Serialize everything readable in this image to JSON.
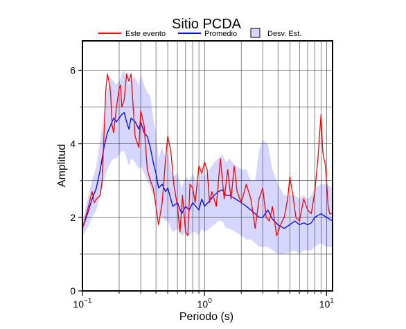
{
  "chart_data": {
    "type": "line",
    "title": "Sitio PCDA",
    "xlabel": "Periodo (s)",
    "ylabel": "Amplitud",
    "x_scale": "log",
    "xlim": [
      0.1,
      11.2
    ],
    "ylim": [
      0,
      6.8
    ],
    "yticks": [
      0,
      2,
      4,
      6
    ],
    "xticks": [
      {
        "value": 0.1,
        "base": "10",
        "exp": "−1"
      },
      {
        "value": 1,
        "base": "10",
        "exp": "0"
      },
      {
        "value": 10,
        "base": "10",
        "exp": "1"
      }
    ],
    "grid": true,
    "legend_placement": "top",
    "legend": {
      "este": "Este evento",
      "prom": "Promedio",
      "desv": "Desv. Est."
    },
    "colors": {
      "este": "#ff0000",
      "prom": "#0000ff",
      "band": "#d6d6ff",
      "grid": "#333333"
    },
    "series": [
      {
        "name": "Este evento",
        "x": [
          0.1,
          0.11,
          0.12,
          0.125,
          0.13,
          0.14,
          0.145,
          0.15,
          0.155,
          0.16,
          0.165,
          0.17,
          0.175,
          0.18,
          0.19,
          0.2,
          0.205,
          0.21,
          0.22,
          0.23,
          0.24,
          0.25,
          0.27,
          0.29,
          0.3,
          0.32,
          0.34,
          0.36,
          0.38,
          0.4,
          0.42,
          0.45,
          0.48,
          0.5,
          0.53,
          0.56,
          0.6,
          0.63,
          0.66,
          0.7,
          0.73,
          0.76,
          0.8,
          0.84,
          0.9,
          0.95,
          1.0,
          1.05,
          1.1,
          1.15,
          1.25,
          1.35,
          1.45,
          1.55,
          1.65,
          1.75,
          1.85,
          2.0,
          2.2,
          2.4,
          2.6,
          2.8,
          3.0,
          3.2,
          3.4,
          3.6,
          3.9,
          4.2,
          4.5,
          4.8,
          5.0,
          5.3,
          5.6,
          6.0,
          6.5,
          7.0,
          7.5,
          8.0,
          8.5,
          9.0,
          9.3,
          9.5,
          9.7,
          10.0,
          10.3,
          10.6,
          11.0,
          11.2
        ],
        "y": [
          1.7,
          2.2,
          2.7,
          2.4,
          2.5,
          2.6,
          3.0,
          4.2,
          5.4,
          5.9,
          5.7,
          5.4,
          4.5,
          4.3,
          5.0,
          5.5,
          5.6,
          5.0,
          5.2,
          5.9,
          5.7,
          5.9,
          4.2,
          3.9,
          4.9,
          4.5,
          3.3,
          3.0,
          2.8,
          2.3,
          1.8,
          2.4,
          3.6,
          4.2,
          3.8,
          2.9,
          2.3,
          1.6,
          2.6,
          1.6,
          1.5,
          2.9,
          2.8,
          2.4,
          3.4,
          3.2,
          3.5,
          3.3,
          2.4,
          2.7,
          2.3,
          3.6,
          2.5,
          3.3,
          2.5,
          3.4,
          2.7,
          2.4,
          2.9,
          2.5,
          1.7,
          2.5,
          2.8,
          2.0,
          1.9,
          2.3,
          1.5,
          1.8,
          2.0,
          2.5,
          3.1,
          2.6,
          2.0,
          1.9,
          2.5,
          2.2,
          2.1,
          2.7,
          3.6,
          4.8,
          3.8,
          3.6,
          3.5,
          3.0,
          2.3,
          2.1,
          2.1,
          2.1
        ]
      },
      {
        "name": "Promedio",
        "x": [
          0.1,
          0.11,
          0.12,
          0.13,
          0.14,
          0.15,
          0.16,
          0.17,
          0.18,
          0.19,
          0.2,
          0.21,
          0.22,
          0.23,
          0.24,
          0.25,
          0.27,
          0.29,
          0.3,
          0.32,
          0.34,
          0.36,
          0.38,
          0.4,
          0.42,
          0.45,
          0.48,
          0.5,
          0.55,
          0.6,
          0.65,
          0.7,
          0.75,
          0.8,
          0.85,
          0.9,
          0.95,
          1.0,
          1.1,
          1.2,
          1.3,
          1.4,
          1.5,
          1.6,
          1.8,
          2.0,
          2.2,
          2.4,
          2.6,
          2.8,
          3.0,
          3.3,
          3.6,
          4.0,
          4.5,
          5.0,
          5.5,
          6.0,
          6.5,
          7.0,
          7.5,
          8.0,
          9.0,
          10.0,
          11.2
        ],
        "y": [
          1.7,
          2.1,
          2.5,
          2.8,
          3.3,
          3.9,
          4.3,
          4.5,
          4.7,
          4.6,
          4.7,
          4.8,
          4.85,
          4.6,
          4.4,
          4.7,
          4.6,
          4.4,
          4.6,
          4.3,
          4.2,
          3.9,
          3.5,
          3.2,
          2.8,
          2.9,
          2.7,
          2.8,
          2.3,
          2.4,
          2.1,
          2.3,
          2.2,
          2.4,
          2.3,
          2.2,
          2.5,
          2.3,
          2.45,
          2.6,
          2.7,
          2.75,
          2.6,
          2.6,
          2.5,
          2.4,
          2.3,
          2.2,
          2.1,
          2.0,
          2.0,
          2.2,
          1.95,
          1.8,
          1.7,
          1.8,
          1.9,
          1.8,
          1.85,
          1.8,
          1.85,
          2.0,
          2.1,
          2.0,
          1.9
        ]
      },
      {
        "name": "Desv. Est.",
        "x": [
          0.1,
          0.11,
          0.12,
          0.13,
          0.14,
          0.15,
          0.16,
          0.17,
          0.18,
          0.19,
          0.2,
          0.21,
          0.22,
          0.23,
          0.24,
          0.25,
          0.27,
          0.29,
          0.3,
          0.32,
          0.34,
          0.36,
          0.38,
          0.4,
          0.42,
          0.45,
          0.48,
          0.5,
          0.55,
          0.6,
          0.65,
          0.7,
          0.75,
          0.8,
          0.85,
          0.9,
          0.95,
          1.0,
          1.1,
          1.2,
          1.3,
          1.4,
          1.5,
          1.6,
          1.8,
          2.0,
          2.2,
          2.4,
          2.6,
          2.8,
          3.0,
          3.3,
          3.6,
          4.0,
          4.5,
          5.0,
          5.5,
          6.0,
          6.5,
          7.0,
          7.5,
          8.0,
          9.0,
          10.0,
          11.2
        ],
        "lower": [
          1.5,
          1.7,
          2.0,
          2.2,
          2.6,
          3.0,
          3.3,
          3.5,
          3.6,
          3.6,
          3.7,
          3.8,
          3.8,
          3.6,
          3.4,
          3.6,
          3.5,
          3.3,
          3.4,
          3.2,
          3.0,
          2.8,
          2.6,
          2.4,
          2.1,
          2.0,
          1.9,
          1.9,
          1.6,
          1.7,
          1.5,
          1.6,
          1.5,
          1.6,
          1.6,
          1.5,
          1.7,
          1.6,
          1.7,
          1.8,
          1.9,
          1.9,
          1.7,
          1.7,
          1.6,
          1.5,
          1.4,
          1.4,
          1.3,
          1.2,
          1.2,
          1.2,
          1.1,
          1.0,
          1.0,
          1.05,
          1.1,
          1.0,
          1.1,
          1.1,
          1.1,
          1.2,
          1.3,
          1.2,
          1.2
        ],
        "upper": [
          1.9,
          2.5,
          3.0,
          3.4,
          4.1,
          4.8,
          5.4,
          5.8,
          5.7,
          5.6,
          5.7,
          5.9,
          6.0,
          5.8,
          5.6,
          5.8,
          5.8,
          5.6,
          5.9,
          5.6,
          5.4,
          5.3,
          4.7,
          4.3,
          3.6,
          3.9,
          3.6,
          3.8,
          3.1,
          3.2,
          2.8,
          3.1,
          3.0,
          3.2,
          3.0,
          2.9,
          3.4,
          3.1,
          3.3,
          3.5,
          3.6,
          3.7,
          3.5,
          3.6,
          3.4,
          3.3,
          3.3,
          3.0,
          3.0,
          3.8,
          4.1,
          4.0,
          3.3,
          2.9,
          2.6,
          2.6,
          2.6,
          2.5,
          2.6,
          2.5,
          2.6,
          2.8,
          2.9,
          2.9,
          2.8
        ]
      }
    ]
  }
}
